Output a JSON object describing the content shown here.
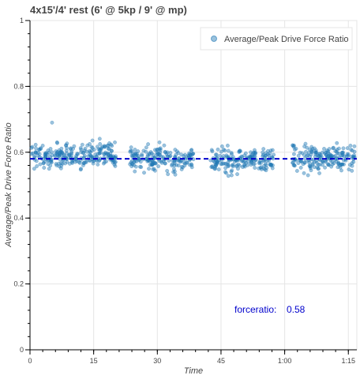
{
  "chart_data": {
    "type": "scatter",
    "title": "4x15'/4' rest (6' @ 5kp / 9' @ mp)",
    "xlabel": "Time",
    "ylabel": "Average/Peak Drive Force Ratio",
    "xlim": [
      0,
      77
    ],
    "ylim": [
      0,
      1
    ],
    "x_ticks": [
      {
        "value": 0,
        "label": "0"
      },
      {
        "value": 15,
        "label": "15"
      },
      {
        "value": 30,
        "label": "30"
      },
      {
        "value": 45,
        "label": "45"
      },
      {
        "value": 60,
        "label": "1:00"
      },
      {
        "value": 75,
        "label": "1:15"
      }
    ],
    "y_ticks": [
      {
        "value": 0,
        "label": "0"
      },
      {
        "value": 0.2,
        "label": "0.2"
      },
      {
        "value": 0.4,
        "label": "0.4"
      },
      {
        "value": 0.6,
        "label": "0.6"
      },
      {
        "value": 0.8,
        "label": "0.8"
      },
      {
        "value": 1,
        "label": "1"
      }
    ],
    "grid": true,
    "legend": {
      "position": "top-right",
      "entries": [
        "Average/Peak Drive Force Ratio"
      ]
    },
    "series": [
      {
        "name": "Average/Peak Drive Force Ratio",
        "color": "#1f77b4",
        "segments": [
          {
            "x_start": 0.3,
            "x_end": 20.5,
            "mean": 0.59,
            "spread": 0.02
          },
          {
            "x_start": 23.5,
            "x_end": 38.5,
            "mean": 0.58,
            "spread": 0.02
          },
          {
            "x_start": 42.5,
            "x_end": 57.5,
            "mean": 0.575,
            "spread": 0.02
          },
          {
            "x_start": 61.5,
            "x_end": 76.8,
            "mean": 0.58,
            "spread": 0.02
          }
        ],
        "points": [
          [
            2.5,
            0.61
          ],
          [
            3.0,
            0.62
          ],
          [
            5.2,
            0.69
          ],
          [
            1.0,
            0.55
          ],
          [
            4.5,
            0.55
          ],
          [
            8.5,
            0.62
          ],
          [
            16.5,
            0.625
          ],
          [
            20.0,
            0.63
          ],
          [
            12.0,
            0.55
          ],
          [
            30.5,
            0.63
          ],
          [
            24.5,
            0.57
          ],
          [
            34.0,
            0.56
          ],
          [
            28.0,
            0.55
          ],
          [
            43.5,
            0.55
          ],
          [
            46.0,
            0.54
          ],
          [
            47.5,
            0.53
          ],
          [
            52.0,
            0.6
          ],
          [
            55.0,
            0.61
          ],
          [
            49.0,
            0.55
          ],
          [
            62.0,
            0.62
          ],
          [
            65.5,
            0.53
          ],
          [
            70.5,
            0.61
          ],
          [
            75.5,
            0.62
          ],
          [
            68.0,
            0.55
          ],
          [
            73.0,
            0.56
          ]
        ]
      }
    ],
    "reference_line": {
      "y": 0.58,
      "color": "#0000cc",
      "style": "dashed"
    },
    "annotation": {
      "label": "forceratio:",
      "value": "0.58",
      "color": "#0000cc"
    }
  }
}
